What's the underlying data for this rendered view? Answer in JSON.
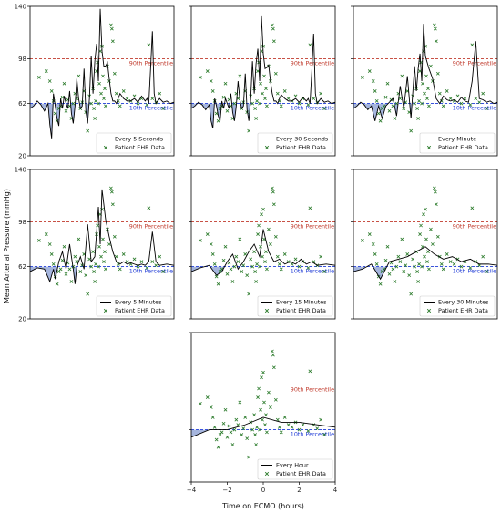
{
  "figure": {
    "ylabel": "Mean Arterial Pressure (mmHg)",
    "xlabel": "Time on ECMO (hours)"
  },
  "colors": {
    "signal": "#000000",
    "ehr": "#2a7a2a",
    "p90": "#c0392b",
    "p10": "#1f3bd6",
    "fill": "#8fa2d4"
  },
  "chart_data": [
    {
      "type": "line",
      "interval_label": "Every 5 Seconds",
      "ehr_label": "Patient EHR Data",
      "xlim": [
        -4,
        4
      ],
      "ylim": [
        20,
        140
      ],
      "yticks": [
        20,
        62,
        98,
        140
      ],
      "xticks": [],
      "p90": {
        "value": 98,
        "label": "90th Percentile"
      },
      "p10": {
        "value": 62,
        "label": "10th Percentile"
      },
      "x": [
        -4,
        -3.8,
        -3.6,
        -3.4,
        -3.2,
        -3.0,
        -2.9,
        -2.8,
        -2.7,
        -2.6,
        -2.5,
        -2.4,
        -2.3,
        -2.2,
        -2.1,
        -2.0,
        -1.9,
        -1.8,
        -1.7,
        -1.6,
        -1.5,
        -1.4,
        -1.3,
        -1.2,
        -1.1,
        -1.0,
        -0.9,
        -0.8,
        -0.7,
        -0.6,
        -0.5,
        -0.4,
        -0.3,
        -0.2,
        -0.1,
        0.0,
        0.1,
        0.2,
        0.3,
        0.4,
        0.5,
        0.6,
        0.7,
        0.8,
        0.9,
        1.0,
        1.2,
        1.4,
        1.6,
        1.8,
        2.0,
        2.2,
        2.4,
        2.5,
        2.6,
        2.7,
        2.8,
        2.9,
        3.0,
        3.2,
        3.4,
        3.6,
        3.8,
        4.0
      ],
      "y": [
        58,
        60,
        64,
        61,
        56,
        62,
        45,
        34,
        70,
        60,
        50,
        44,
        66,
        58,
        68,
        62,
        58,
        72,
        54,
        46,
        60,
        82,
        66,
        58,
        60,
        90,
        56,
        46,
        66,
        100,
        70,
        96,
        110,
        80,
        138,
        104,
        92,
        92,
        95,
        82,
        70,
        64,
        64,
        62,
        66,
        70,
        66,
        64,
        64,
        66,
        63,
        68,
        64,
        66,
        62,
        90,
        120,
        70,
        62,
        66,
        63,
        64,
        62,
        63
      ]
    },
    {
      "type": "line",
      "interval_label": "Every 30 Seconds",
      "ehr_label": "Patient EHR Data",
      "xlim": [
        -4,
        4
      ],
      "ylim": [
        20,
        140
      ],
      "yticks": [
        20,
        62,
        98,
        140
      ],
      "xticks": [],
      "p90": {
        "value": 98,
        "label": "90th Percentile"
      },
      "p10": {
        "value": 62,
        "label": "10th Percentile"
      },
      "x": [
        -4,
        -3.8,
        -3.6,
        -3.4,
        -3.2,
        -3.0,
        -2.9,
        -2.8,
        -2.7,
        -2.6,
        -2.5,
        -2.4,
        -2.3,
        -2.2,
        -2.1,
        -2.0,
        -1.9,
        -1.8,
        -1.7,
        -1.6,
        -1.5,
        -1.4,
        -1.3,
        -1.2,
        -1.1,
        -1.0,
        -0.9,
        -0.8,
        -0.7,
        -0.6,
        -0.5,
        -0.4,
        -0.3,
        -0.2,
        -0.1,
        0.0,
        0.1,
        0.2,
        0.3,
        0.4,
        0.5,
        0.6,
        0.7,
        0.8,
        0.9,
        1.0,
        1.2,
        1.4,
        1.6,
        1.8,
        2.0,
        2.2,
        2.4,
        2.5,
        2.6,
        2.7,
        2.8,
        2.9,
        3.0,
        3.2,
        3.4,
        3.6,
        3.8,
        4.0
      ],
      "y": [
        58,
        60,
        63,
        61,
        57,
        61,
        48,
        42,
        66,
        60,
        52,
        48,
        64,
        58,
        66,
        62,
        58,
        70,
        55,
        48,
        60,
        80,
        65,
        58,
        60,
        86,
        57,
        48,
        65,
        96,
        70,
        94,
        106,
        80,
        132,
        102,
        90,
        91,
        93,
        80,
        70,
        64,
        64,
        62,
        66,
        69,
        66,
        64,
        64,
        66,
        63,
        67,
        64,
        66,
        62,
        88,
        118,
        70,
        62,
        66,
        63,
        64,
        62,
        63
      ]
    },
    {
      "type": "line",
      "interval_label": "Every Minute",
      "ehr_label": "Patient EHR Data",
      "xlim": [
        -4,
        4
      ],
      "ylim": [
        20,
        140
      ],
      "yticks": [
        20,
        62,
        98,
        140
      ],
      "xticks": [],
      "p90": {
        "value": 98,
        "label": "90th Percentile"
      },
      "p10": {
        "value": 62,
        "label": "10th Percentile"
      },
      "x": [
        -4,
        -3.8,
        -3.6,
        -3.4,
        -3.2,
        -3.0,
        -2.8,
        -2.6,
        -2.4,
        -2.2,
        -2.0,
        -1.8,
        -1.6,
        -1.4,
        -1.2,
        -1.0,
        -0.8,
        -0.6,
        -0.5,
        -0.4,
        -0.3,
        -0.2,
        -0.1,
        0.0,
        0.2,
        0.4,
        0.6,
        0.8,
        1.0,
        1.2,
        1.4,
        1.6,
        1.8,
        2.0,
        2.2,
        2.4,
        2.6,
        2.8,
        3.0,
        3.2,
        3.4,
        3.6,
        3.8,
        4.0
      ],
      "y": [
        58,
        60,
        63,
        61,
        57,
        60,
        48,
        60,
        50,
        60,
        63,
        66,
        52,
        76,
        58,
        84,
        50,
        92,
        72,
        90,
        102,
        80,
        126,
        100,
        90,
        82,
        66,
        62,
        68,
        65,
        64,
        65,
        63,
        67,
        64,
        63,
        80,
        112,
        66,
        65,
        63,
        64,
        62,
        63
      ]
    },
    {
      "type": "line",
      "interval_label": "Every 5 Minutes",
      "ehr_label": "Patient EHR Data",
      "xlim": [
        -4,
        4
      ],
      "ylim": [
        20,
        140
      ],
      "yticks": [
        20,
        62,
        98,
        140
      ],
      "xticks": [],
      "p90": {
        "value": 98,
        "label": "90th Percentile"
      },
      "p10": {
        "value": 62,
        "label": "10th Percentile"
      },
      "x": [
        -4,
        -3.6,
        -3.2,
        -2.9,
        -2.7,
        -2.6,
        -2.4,
        -2.2,
        -2.0,
        -1.8,
        -1.6,
        -1.5,
        -1.4,
        -1.2,
        -1.0,
        -0.8,
        -0.6,
        -0.4,
        -0.2,
        -0.1,
        0.0,
        0.2,
        0.4,
        0.6,
        0.8,
        1.0,
        1.2,
        1.4,
        1.6,
        1.8,
        2.0,
        2.2,
        2.4,
        2.6,
        2.8,
        3.0,
        3.2,
        3.6,
        4.0
      ],
      "y": [
        58,
        61,
        60,
        50,
        60,
        52,
        66,
        74,
        60,
        80,
        60,
        48,
        62,
        70,
        60,
        96,
        66,
        70,
        110,
        80,
        124,
        100,
        86,
        74,
        66,
        64,
        66,
        64,
        65,
        64,
        63,
        64,
        63,
        66,
        90,
        66,
        63,
        64,
        63
      ]
    },
    {
      "type": "line",
      "interval_label": "Every 15 Minutes",
      "ehr_label": "Patient EHR Data",
      "xlim": [
        -4,
        4
      ],
      "ylim": [
        20,
        140
      ],
      "yticks": [
        20,
        62,
        98,
        140
      ],
      "xticks": [],
      "p90": {
        "value": 98,
        "label": "90th Percentile"
      },
      "p10": {
        "value": 62,
        "label": "10th Percentile"
      },
      "x": [
        -4,
        -3.5,
        -3.0,
        -2.6,
        -2.3,
        -2.0,
        -1.7,
        -1.4,
        -1.1,
        -0.8,
        -0.5,
        -0.2,
        0.0,
        0.3,
        0.6,
        0.9,
        1.2,
        1.5,
        1.8,
        2.1,
        2.4,
        2.7,
        3.0,
        3.5,
        4.0
      ],
      "y": [
        58,
        61,
        63,
        55,
        58,
        66,
        72,
        60,
        66,
        74,
        80,
        70,
        92,
        74,
        66,
        68,
        64,
        66,
        64,
        68,
        64,
        66,
        63,
        64,
        63
      ]
    },
    {
      "type": "line",
      "interval_label": "Every 30 Minutes",
      "ehr_label": "Patient EHR Data",
      "xlim": [
        -4,
        4
      ],
      "ylim": [
        20,
        140
      ],
      "yticks": [
        20,
        62,
        98,
        140
      ],
      "xticks": [],
      "p90": {
        "value": 98,
        "label": "90th Percentile"
      },
      "p10": {
        "value": 62,
        "label": "10th Percentile"
      },
      "x": [
        -4,
        -3.5,
        -3.0,
        -2.5,
        -2.0,
        -1.5,
        -1.0,
        -0.5,
        0.0,
        0.5,
        1.0,
        1.5,
        2.0,
        2.5,
        3.0,
        3.5,
        4.0
      ],
      "y": [
        58,
        60,
        64,
        52,
        66,
        68,
        70,
        74,
        78,
        72,
        68,
        70,
        66,
        68,
        64,
        64,
        63
      ]
    },
    {
      "type": "line",
      "interval_label": "Every Hour",
      "ehr_label": "Patient EHR Data",
      "xlim": [
        -4,
        4
      ],
      "ylim": [
        20,
        140
      ],
      "yticks": [
        20,
        62,
        98,
        140
      ],
      "xticks": [
        -4,
        -2,
        0,
        2,
        4
      ],
      "p90": {
        "value": 98,
        "label": "90th Percentile"
      },
      "p10": {
        "value": 62,
        "label": "10th Percentile"
      },
      "x": [
        -4,
        -3,
        -2,
        -1,
        0,
        1,
        2,
        3,
        4
      ],
      "y": [
        56,
        62,
        62,
        66,
        72,
        68,
        68,
        66,
        64
      ]
    }
  ],
  "ehr_points": [
    [
      -3.5,
      83
    ],
    [
      -3.1,
      88
    ],
    [
      -2.9,
      80
    ],
    [
      -2.8,
      72
    ],
    [
      -2.7,
      64
    ],
    [
      -2.6,
      54
    ],
    [
      -2.5,
      48
    ],
    [
      -2.4,
      58
    ],
    [
      -2.3,
      60
    ],
    [
      -2.2,
      67
    ],
    [
      -2.1,
      78
    ],
    [
      -2.0,
      56
    ],
    [
      -1.9,
      65
    ],
    [
      -1.8,
      60
    ],
    [
      -1.7,
      50
    ],
    [
      -1.6,
      62
    ],
    [
      -1.5,
      70
    ],
    [
      -1.4,
      66
    ],
    [
      -1.3,
      84
    ],
    [
      -1.2,
      58
    ],
    [
      -1.1,
      63
    ],
    [
      -1.0,
      72
    ],
    [
      -0.9,
      55
    ],
    [
      -0.8,
      40
    ],
    [
      -0.7,
      68
    ],
    [
      -0.6,
      62
    ],
    [
      -0.5,
      74
    ],
    [
      -0.45,
      58
    ],
    [
      -0.4,
      50
    ],
    [
      -0.35,
      64
    ],
    [
      -0.3,
      88
    ],
    [
      -0.25,
      95
    ],
    [
      -0.2,
      62
    ],
    [
      -0.15,
      78
    ],
    [
      -0.1,
      104
    ],
    [
      -0.05,
      70
    ],
    [
      0.0,
      108
    ],
    [
      0.05,
      84
    ],
    [
      0.1,
      66
    ],
    [
      0.15,
      74
    ],
    [
      0.2,
      60
    ],
    [
      0.3,
      92
    ],
    [
      0.4,
      80
    ],
    [
      0.5,
      125
    ],
    [
      0.55,
      122
    ],
    [
      0.6,
      112
    ],
    [
      0.7,
      86
    ],
    [
      0.8,
      70
    ],
    [
      0.9,
      64
    ],
    [
      1.0,
      60
    ],
    [
      1.2,
      72
    ],
    [
      1.4,
      66
    ],
    [
      1.6,
      64
    ],
    [
      1.8,
      68
    ],
    [
      2.0,
      62
    ],
    [
      2.2,
      66
    ],
    [
      2.5,
      61
    ],
    [
      2.8,
      66
    ],
    [
      3.0,
      63
    ],
    [
      3.2,
      70
    ],
    [
      2.6,
      109
    ],
    [
      3.4,
      58
    ]
  ]
}
